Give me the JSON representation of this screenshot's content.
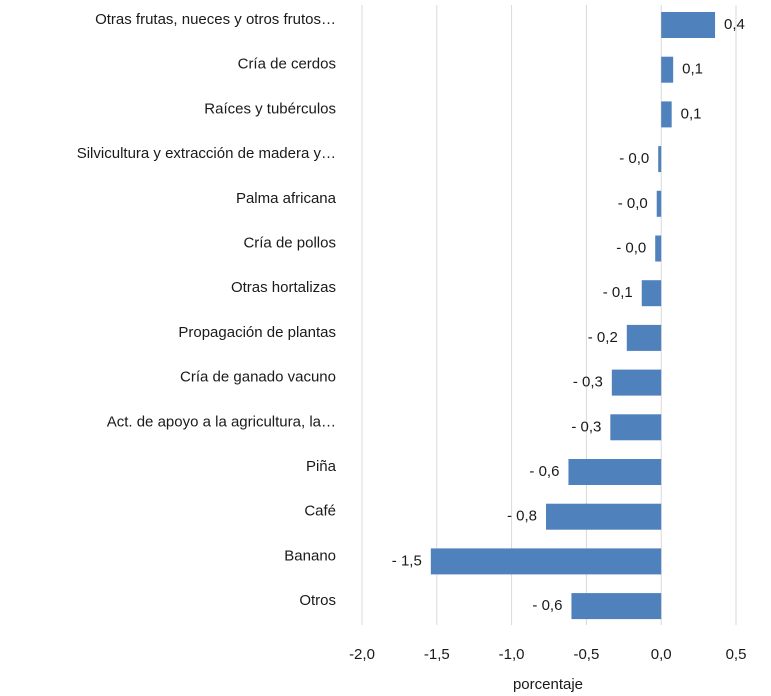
{
  "chart_data": {
    "type": "barh",
    "categories": [
      "Otras frutas, nueces y otros frutos…",
      "Cría de cerdos",
      "Raíces y tubérculos",
      "Silvicultura y extracción de madera y…",
      "Palma africana",
      "Cría de pollos",
      "Otras hortalizas",
      "Propagación de plantas",
      "Cría de ganado vacuno",
      "Act. de apoyo a la agricultura, la…",
      "Piña",
      "Café",
      "Banano",
      "Otros"
    ],
    "values": [
      0.36,
      0.08,
      0.07,
      -0.02,
      -0.03,
      -0.04,
      -0.13,
      -0.23,
      -0.33,
      -0.34,
      -0.62,
      -0.77,
      -1.54,
      -0.6
    ],
    "value_labels": [
      "0,4",
      "0,1",
      "0,1",
      "- 0,0",
      "- 0,0",
      "- 0,0",
      "- 0,1",
      "- 0,2",
      "- 0,3",
      "- 0,3",
      "- 0,6",
      "- 0,8",
      "- 1,5",
      "- 0,6"
    ],
    "color": "#4f81bd",
    "xlim": [
      -2.0,
      0.5
    ],
    "xticks": [
      {
        "value": -2.0,
        "label": "-2,0"
      },
      {
        "value": -1.5,
        "label": "-1,5"
      },
      {
        "value": -1.0,
        "label": "-1,0"
      },
      {
        "value": -0.5,
        "label": "-0,5"
      },
      {
        "value": 0,
        "label": "0,0"
      },
      {
        "value": 0.5,
        "label": "0,5"
      }
    ],
    "xlabel": "porcentaje",
    "grid": true
  }
}
